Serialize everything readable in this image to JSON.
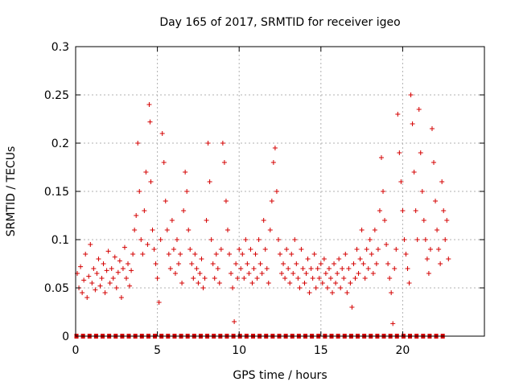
{
  "chart_data": {
    "type": "scatter",
    "title": "Day 165 of 2017, SRMTID for receiver igeo",
    "xlabel": "GPS time / hours",
    "ylabel": "SRMTID / TECUs",
    "xlim": [
      0,
      25
    ],
    "ylim": [
      0,
      0.3
    ],
    "x_ticks": [
      0,
      5,
      10,
      15,
      20
    ],
    "x_tick_labels": [
      "0",
      "5",
      "10",
      "15",
      "20"
    ],
    "y_ticks": [
      0,
      0.05,
      0.1,
      0.15,
      0.2,
      0.25,
      0.3
    ],
    "y_tick_labels": [
      "0",
      "0.05",
      "0.1",
      "0.15",
      "0.2",
      "0.25",
      "0.3"
    ],
    "grid": true,
    "marker_color": "#d40000",
    "baseline_marker_times": [
      0.05,
      0.45,
      0.85,
      1.25,
      1.65,
      2.05,
      2.45,
      2.85,
      3.25,
      3.65,
      4.05,
      4.45,
      4.85,
      5.25,
      5.65,
      6.05,
      6.45,
      6.85,
      7.25,
      7.65,
      8.05,
      8.45,
      8.85,
      9.25,
      9.65,
      10.05,
      10.45,
      10.85,
      11.25,
      11.65,
      12.05,
      12.45,
      12.85,
      13.25,
      13.65,
      14.05,
      14.45,
      14.85,
      15.25,
      15.65,
      16.05,
      16.45,
      16.85,
      17.25,
      17.65,
      18.05,
      18.45,
      18.85,
      19.25,
      19.65,
      20.05,
      20.45,
      20.85,
      21.25,
      21.65,
      22.05,
      22.45
    ],
    "series": [
      {
        "name": "SRMTID",
        "points": [
          [
            0.1,
            0.065
          ],
          [
            0.2,
            0.05
          ],
          [
            0.3,
            0.072
          ],
          [
            0.4,
            0.045
          ],
          [
            0.5,
            0.058
          ],
          [
            0.6,
            0.085
          ],
          [
            0.7,
            0.04
          ],
          [
            0.8,
            0.062
          ],
          [
            0.9,
            0.095
          ],
          [
            1.0,
            0.055
          ],
          [
            1.1,
            0.07
          ],
          [
            1.2,
            0.048
          ],
          [
            1.3,
            0.065
          ],
          [
            1.4,
            0.08
          ],
          [
            1.5,
            0.052
          ],
          [
            1.6,
            0.06
          ],
          [
            1.7,
            0.075
          ],
          [
            1.8,
            0.045
          ],
          [
            1.9,
            0.068
          ],
          [
            2.0,
            0.088
          ],
          [
            2.1,
            0.055
          ],
          [
            2.2,
            0.07
          ],
          [
            2.3,
            0.06
          ],
          [
            2.4,
            0.082
          ],
          [
            2.5,
            0.05
          ],
          [
            2.6,
            0.066
          ],
          [
            2.7,
            0.078
          ],
          [
            2.8,
            0.04
          ],
          [
            2.9,
            0.07
          ],
          [
            3.0,
            0.092
          ],
          [
            3.1,
            0.06
          ],
          [
            3.2,
            0.075
          ],
          [
            3.3,
            0.052
          ],
          [
            3.4,
            0.068
          ],
          [
            3.5,
            0.085
          ],
          [
            3.6,
            0.11
          ],
          [
            3.7,
            0.125
          ],
          [
            3.8,
            0.2
          ],
          [
            3.9,
            0.15
          ],
          [
            4.0,
            0.1
          ],
          [
            4.1,
            0.085
          ],
          [
            4.2,
            0.13
          ],
          [
            4.3,
            0.17
          ],
          [
            4.4,
            0.095
          ],
          [
            4.5,
            0.24
          ],
          [
            4.55,
            0.222
          ],
          [
            4.6,
            0.16
          ],
          [
            4.7,
            0.11
          ],
          [
            4.8,
            0.09
          ],
          [
            4.9,
            0.075
          ],
          [
            5.0,
            0.06
          ],
          [
            5.1,
            0.035
          ],
          [
            5.2,
            0.1
          ],
          [
            5.3,
            0.21
          ],
          [
            5.4,
            0.18
          ],
          [
            5.5,
            0.14
          ],
          [
            5.6,
            0.11
          ],
          [
            5.7,
            0.085
          ],
          [
            5.8,
            0.07
          ],
          [
            5.9,
            0.12
          ],
          [
            6.0,
            0.09
          ],
          [
            6.1,
            0.065
          ],
          [
            6.2,
            0.1
          ],
          [
            6.3,
            0.075
          ],
          [
            6.4,
            0.085
          ],
          [
            6.5,
            0.055
          ],
          [
            6.6,
            0.13
          ],
          [
            6.7,
            0.17
          ],
          [
            6.8,
            0.15
          ],
          [
            6.9,
            0.11
          ],
          [
            7.0,
            0.09
          ],
          [
            7.1,
            0.075
          ],
          [
            7.2,
            0.06
          ],
          [
            7.3,
            0.085
          ],
          [
            7.4,
            0.07
          ],
          [
            7.5,
            0.055
          ],
          [
            7.6,
            0.065
          ],
          [
            7.7,
            0.08
          ],
          [
            7.8,
            0.05
          ],
          [
            7.9,
            0.06
          ],
          [
            8.0,
            0.12
          ],
          [
            8.1,
            0.2
          ],
          [
            8.2,
            0.16
          ],
          [
            8.3,
            0.1
          ],
          [
            8.4,
            0.075
          ],
          [
            8.5,
            0.06
          ],
          [
            8.6,
            0.085
          ],
          [
            8.7,
            0.07
          ],
          [
            8.8,
            0.055
          ],
          [
            8.9,
            0.09
          ],
          [
            9.0,
            0.2
          ],
          [
            9.1,
            0.18
          ],
          [
            9.2,
            0.14
          ],
          [
            9.3,
            0.11
          ],
          [
            9.4,
            0.085
          ],
          [
            9.5,
            0.065
          ],
          [
            9.6,
            0.05
          ],
          [
            9.7,
            0.015
          ],
          [
            9.8,
            0.075
          ],
          [
            9.9,
            0.06
          ],
          [
            10.0,
            0.09
          ],
          [
            10.1,
            0.07
          ],
          [
            10.2,
            0.085
          ],
          [
            10.3,
            0.06
          ],
          [
            10.4,
            0.1
          ],
          [
            10.5,
            0.075
          ],
          [
            10.6,
            0.065
          ],
          [
            10.7,
            0.09
          ],
          [
            10.8,
            0.055
          ],
          [
            10.9,
            0.07
          ],
          [
            11.0,
            0.085
          ],
          [
            11.1,
            0.06
          ],
          [
            11.2,
            0.1
          ],
          [
            11.3,
            0.075
          ],
          [
            11.4,
            0.065
          ],
          [
            11.5,
            0.12
          ],
          [
            11.6,
            0.09
          ],
          [
            11.7,
            0.07
          ],
          [
            11.8,
            0.055
          ],
          [
            11.9,
            0.11
          ],
          [
            12.0,
            0.14
          ],
          [
            12.1,
            0.18
          ],
          [
            12.2,
            0.195
          ],
          [
            12.3,
            0.15
          ],
          [
            12.4,
            0.1
          ],
          [
            12.5,
            0.085
          ],
          [
            12.6,
            0.065
          ],
          [
            12.7,
            0.075
          ],
          [
            12.8,
            0.06
          ],
          [
            12.9,
            0.09
          ],
          [
            13.0,
            0.07
          ],
          [
            13.1,
            0.055
          ],
          [
            13.2,
            0.085
          ],
          [
            13.3,
            0.065
          ],
          [
            13.4,
            0.1
          ],
          [
            13.5,
            0.075
          ],
          [
            13.6,
            0.06
          ],
          [
            13.7,
            0.05
          ],
          [
            13.8,
            0.09
          ],
          [
            13.9,
            0.07
          ],
          [
            14.0,
            0.055
          ],
          [
            14.1,
            0.065
          ],
          [
            14.2,
            0.08
          ],
          [
            14.3,
            0.045
          ],
          [
            14.4,
            0.07
          ],
          [
            14.5,
            0.06
          ],
          [
            14.6,
            0.085
          ],
          [
            14.7,
            0.05
          ],
          [
            14.8,
            0.07
          ],
          [
            14.9,
            0.06
          ],
          [
            15.0,
            0.075
          ],
          [
            15.1,
            0.055
          ],
          [
            15.2,
            0.08
          ],
          [
            15.3,
            0.065
          ],
          [
            15.4,
            0.05
          ],
          [
            15.5,
            0.07
          ],
          [
            15.6,
            0.06
          ],
          [
            15.7,
            0.045
          ],
          [
            15.8,
            0.075
          ],
          [
            15.9,
            0.055
          ],
          [
            16.0,
            0.065
          ],
          [
            16.1,
            0.08
          ],
          [
            16.2,
            0.05
          ],
          [
            16.3,
            0.07
          ],
          [
            16.4,
            0.06
          ],
          [
            16.5,
            0.085
          ],
          [
            16.6,
            0.045
          ],
          [
            16.7,
            0.07
          ],
          [
            16.8,
            0.055
          ],
          [
            16.9,
            0.03
          ],
          [
            17.0,
            0.075
          ],
          [
            17.1,
            0.06
          ],
          [
            17.2,
            0.09
          ],
          [
            17.3,
            0.065
          ],
          [
            17.4,
            0.08
          ],
          [
            17.5,
            0.11
          ],
          [
            17.6,
            0.075
          ],
          [
            17.7,
            0.06
          ],
          [
            17.8,
            0.09
          ],
          [
            17.9,
            0.07
          ],
          [
            18.0,
            0.1
          ],
          [
            18.1,
            0.085
          ],
          [
            18.2,
            0.065
          ],
          [
            18.3,
            0.11
          ],
          [
            18.4,
            0.075
          ],
          [
            18.5,
            0.09
          ],
          [
            18.6,
            0.13
          ],
          [
            18.7,
            0.185
          ],
          [
            18.8,
            0.15
          ],
          [
            18.9,
            0.12
          ],
          [
            19.0,
            0.095
          ],
          [
            19.1,
            0.075
          ],
          [
            19.2,
            0.06
          ],
          [
            19.3,
            0.045
          ],
          [
            19.4,
            0.013
          ],
          [
            19.5,
            0.07
          ],
          [
            19.6,
            0.09
          ],
          [
            19.7,
            0.23
          ],
          [
            19.8,
            0.19
          ],
          [
            19.9,
            0.16
          ],
          [
            20.0,
            0.13
          ],
          [
            20.1,
            0.1
          ],
          [
            20.2,
            0.085
          ],
          [
            20.3,
            0.07
          ],
          [
            20.4,
            0.055
          ],
          [
            20.5,
            0.25
          ],
          [
            20.6,
            0.22
          ],
          [
            20.7,
            0.17
          ],
          [
            20.8,
            0.13
          ],
          [
            20.9,
            0.1
          ],
          [
            21.0,
            0.235
          ],
          [
            21.1,
            0.19
          ],
          [
            21.2,
            0.15
          ],
          [
            21.3,
            0.12
          ],
          [
            21.4,
            0.1
          ],
          [
            21.5,
            0.08
          ],
          [
            21.6,
            0.065
          ],
          [
            21.7,
            0.09
          ],
          [
            21.8,
            0.215
          ],
          [
            21.9,
            0.18
          ],
          [
            22.0,
            0.14
          ],
          [
            22.1,
            0.11
          ],
          [
            22.2,
            0.09
          ],
          [
            22.3,
            0.075
          ],
          [
            22.4,
            0.16
          ],
          [
            22.5,
            0.13
          ],
          [
            22.6,
            0.1
          ],
          [
            22.7,
            0.12
          ],
          [
            22.8,
            0.08
          ]
        ]
      }
    ]
  }
}
